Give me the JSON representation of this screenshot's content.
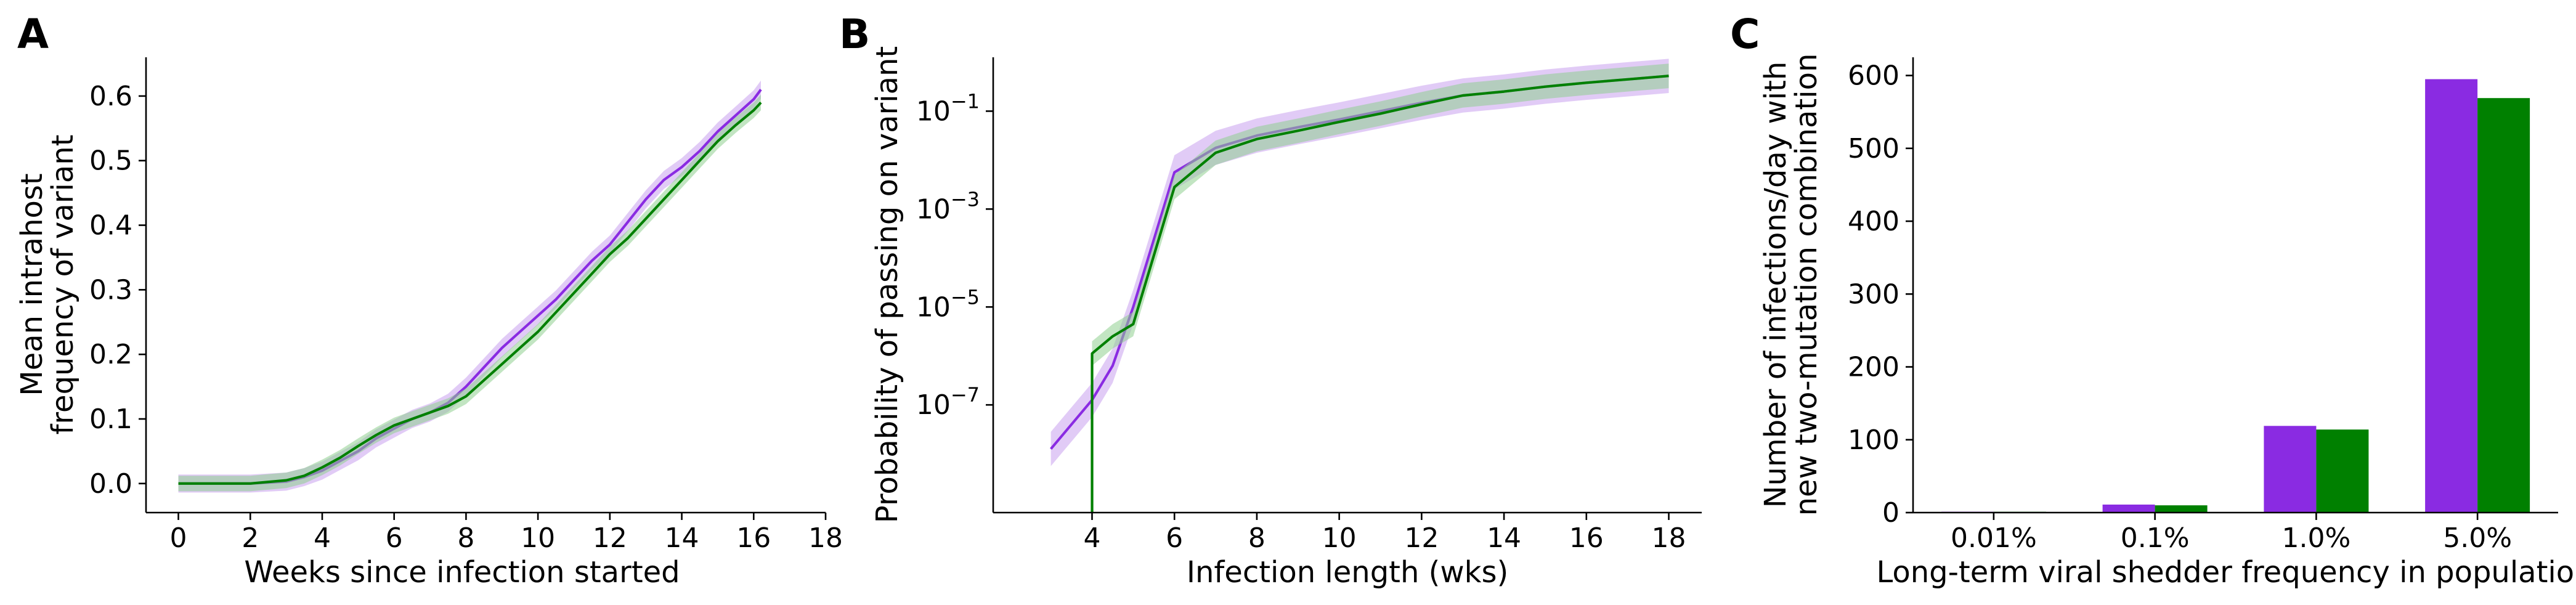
{
  "colors": {
    "purple": "#8a2be2",
    "green": "#008000",
    "purple_band": "#c9a0ef",
    "green_band": "#8fd08f"
  },
  "chart_data": [
    {
      "panel": "A",
      "type": "line",
      "xlabel": "Weeks since infection started",
      "ylabel_lines": [
        "Mean intrahost",
        "frequency of variant"
      ],
      "xlim": [
        -0.9,
        18.0
      ],
      "ylim": [
        -0.045,
        0.66
      ],
      "xticks": [
        0,
        2,
        4,
        6,
        8,
        10,
        12,
        14,
        16,
        18
      ],
      "xtick_labels": [
        "0",
        "2",
        "4",
        "6",
        "8",
        "10",
        "12",
        "14",
        "16",
        "18"
      ],
      "yticks": [
        0.0,
        0.1,
        0.2,
        0.3,
        0.4,
        0.5,
        0.6
      ],
      "ytick_labels": [
        "0.0",
        "0.1",
        "0.2",
        "0.3",
        "0.4",
        "0.5",
        "0.6"
      ],
      "series": [
        {
          "name": "purple",
          "color_key": "purple",
          "x": [
            0,
            1,
            2,
            3,
            3.5,
            4,
            4.5,
            5,
            5.5,
            6,
            6.5,
            7,
            7.5,
            8,
            8.5,
            9,
            9.5,
            10,
            10.5,
            11,
            11.5,
            12,
            12.5,
            13,
            13.5,
            14,
            14.5,
            15,
            15.5,
            16,
            16.2
          ],
          "y": [
            0.0,
            0.0,
            0.0,
            0.003,
            0.01,
            0.02,
            0.035,
            0.05,
            0.07,
            0.085,
            0.1,
            0.11,
            0.125,
            0.15,
            0.18,
            0.21,
            0.235,
            0.26,
            0.285,
            0.315,
            0.345,
            0.37,
            0.405,
            0.44,
            0.47,
            0.49,
            0.515,
            0.545,
            0.57,
            0.595,
            0.61
          ],
          "band": 0.014
        },
        {
          "name": "green",
          "color_key": "green",
          "x": [
            0,
            1,
            2,
            3,
            3.5,
            4,
            4.5,
            5,
            5.5,
            6,
            6.5,
            7,
            7.5,
            8,
            8.5,
            9,
            9.5,
            10,
            10.5,
            11,
            11.5,
            12,
            12.5,
            13,
            13.5,
            14,
            14.5,
            15,
            15.5,
            16,
            16.2
          ],
          "y": [
            0.0,
            0.0,
            0.0,
            0.005,
            0.012,
            0.025,
            0.04,
            0.058,
            0.075,
            0.09,
            0.1,
            0.11,
            0.12,
            0.135,
            0.16,
            0.185,
            0.21,
            0.235,
            0.265,
            0.295,
            0.325,
            0.355,
            0.38,
            0.41,
            0.44,
            0.47,
            0.5,
            0.53,
            0.555,
            0.578,
            0.59
          ],
          "band": 0.012
        }
      ]
    },
    {
      "panel": "B",
      "type": "line",
      "yscale": "log",
      "xlabel": "Infection length (wks)",
      "ylabel_lines": [
        "Probability of passing on variant"
      ],
      "xlim": [
        1.6,
        18.8
      ],
      "ylim_log10": [
        -9.2,
        0.1
      ],
      "xticks": [
        4,
        6,
        8,
        10,
        12,
        14,
        16,
        18
      ],
      "xtick_labels": [
        "4",
        "6",
        "8",
        "10",
        "12",
        "14",
        "16",
        "18"
      ],
      "yticks_log10": [
        -7,
        -5,
        -3,
        -1
      ],
      "ytick_labels": [
        [
          "10",
          "−7"
        ],
        [
          "10",
          "−5"
        ],
        [
          "10",
          "−3"
        ],
        [
          "10",
          "−1"
        ]
      ],
      "series": [
        {
          "name": "purple",
          "color_key": "purple",
          "x": [
            3,
            4,
            4.5,
            5,
            6,
            7,
            8,
            9,
            10,
            11,
            12,
            13,
            14,
            15,
            16,
            17,
            18
          ],
          "log10_y": [
            -7.9,
            -6.9,
            -6.2,
            -5.0,
            -2.25,
            -1.75,
            -1.5,
            -1.33,
            -1.17,
            -1.0,
            -0.83,
            -0.68,
            -0.6,
            -0.5,
            -0.42,
            -0.35,
            -0.28
          ],
          "band": 0.35
        },
        {
          "name": "green",
          "color_key": "green",
          "x": [
            4,
            4,
            4.5,
            5,
            6,
            7,
            8,
            9,
            10,
            11,
            12,
            13,
            14,
            15,
            16,
            17,
            18
          ],
          "log10_y": [
            -9.2,
            -5.95,
            -5.6,
            -5.35,
            -2.55,
            -1.85,
            -1.57,
            -1.4,
            -1.22,
            -1.05,
            -0.86,
            -0.68,
            -0.6,
            -0.5,
            -0.42,
            -0.35,
            -0.28
          ],
          "band": 0.25
        }
      ]
    },
    {
      "panel": "C",
      "type": "bar",
      "xlabel": "Long-term viral shedder frequency in population",
      "ylabel_lines": [
        "Number of infections/day with",
        "new two-mutation combination"
      ],
      "categories": [
        "0.01%",
        "0.1%",
        "1.0%",
        "5.0%"
      ],
      "ylim": [
        0,
        625
      ],
      "yticks": [
        0,
        100,
        200,
        300,
        400,
        500,
        600
      ],
      "ytick_labels": [
        "0",
        "100",
        "200",
        "300",
        "400",
        "500",
        "600"
      ],
      "series": [
        {
          "name": "purple",
          "color_key": "purple",
          "values": [
            1.2,
            11,
            119,
            595
          ]
        },
        {
          "name": "green",
          "color_key": "green",
          "values": [
            1.1,
            10,
            114,
            569
          ]
        }
      ]
    }
  ]
}
